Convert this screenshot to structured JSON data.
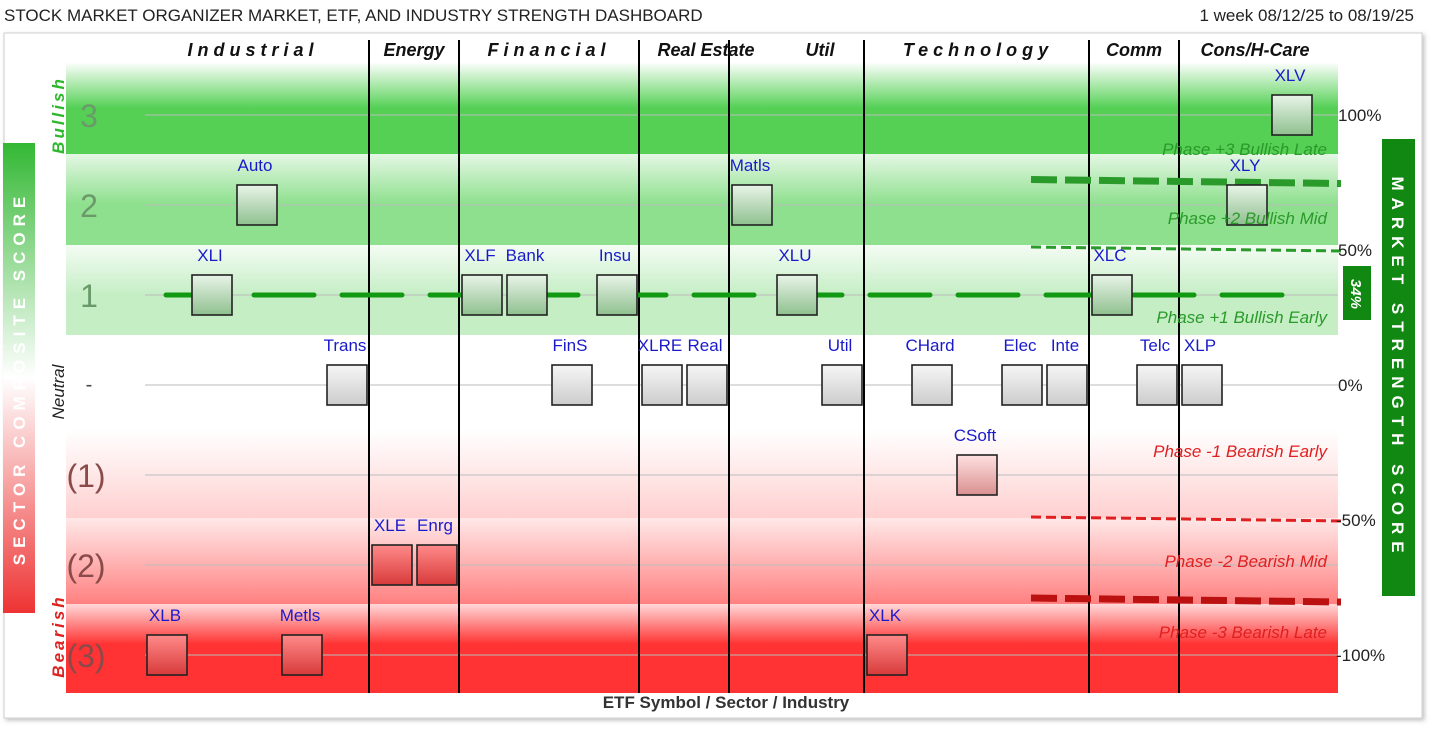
{
  "header": {
    "title": "STOCK MARKET ORGANIZER MARKET, ETF, AND INDUSTRY STRENGTH DASHBOARD",
    "date_range": "1 week 08/12/25 to 08/19/25"
  },
  "left_axis": {
    "title": "SECTOR COMPOSITE SCORE",
    "bullish": "Bullish",
    "neutral": "Neutral",
    "bearish": "Bearish"
  },
  "right_axis": {
    "title": "MARKET STRENGTH SCORE",
    "market_value": "34%",
    "ticks": [
      {
        "label": "100%",
        "value": 100
      },
      {
        "label": "50%",
        "value": 50
      },
      {
        "label": "0%",
        "value": 0
      },
      {
        "label": "-50%",
        "value": -50
      },
      {
        "label": "-100%",
        "value": -100
      }
    ]
  },
  "chart_data": {
    "type": "scatter",
    "title": "STOCK MARKET ORGANIZER MARKET, ETF, AND INDUSTRY STRENGTH DASHBOARD",
    "xlabel": "ETF Symbol / Sector / Industry",
    "ylabel": "SECTOR COMPOSITE SCORE",
    "y2label": "MARKET STRENGTH SCORE",
    "ylim": [
      -3,
      3
    ],
    "y_levels": [
      {
        "label": "3",
        "value": 3
      },
      {
        "label": "2",
        "value": 2
      },
      {
        "label": "1",
        "value": 1
      },
      {
        "label": "-",
        "value": 0
      },
      {
        "label": "(1)",
        "value": -1
      },
      {
        "label": "(2)",
        "value": -2
      },
      {
        "label": "(3)",
        "value": -3
      }
    ],
    "sectors": [
      {
        "name": "Industrial",
        "symbols": [
          "XLB",
          "Auto",
          "XLI",
          "Metls",
          "Trans"
        ]
      },
      {
        "name": "Energy",
        "symbols": [
          "XLE",
          "Enrg"
        ]
      },
      {
        "name": "Financial",
        "symbols": [
          "XLF",
          "Bank",
          "FinS",
          "Insu"
        ]
      },
      {
        "name": "Real Estate",
        "symbols": [
          "XLRE",
          "Real"
        ]
      },
      {
        "name": "Util",
        "symbols": [
          "Matls",
          "XLU",
          "Util"
        ]
      },
      {
        "name": "Technology",
        "symbols": [
          "XLK",
          "CHard",
          "CSoft",
          "Elec",
          "Inte"
        ]
      },
      {
        "name": "Comm",
        "symbols": [
          "XLC",
          "Telc"
        ]
      },
      {
        "name": "Cons/H-Care",
        "symbols": [
          "XLP",
          "XLY",
          "XLV"
        ]
      }
    ],
    "points": [
      {
        "label": "XLB",
        "score": -3
      },
      {
        "label": "Auto",
        "score": 2
      },
      {
        "label": "XLI",
        "score": 1
      },
      {
        "label": "Metls",
        "score": -3
      },
      {
        "label": "Trans",
        "score": 0
      },
      {
        "label": "XLE",
        "score": -2
      },
      {
        "label": "Enrg",
        "score": -2
      },
      {
        "label": "XLF",
        "score": 1
      },
      {
        "label": "Bank",
        "score": 1
      },
      {
        "label": "FinS",
        "score": 0
      },
      {
        "label": "Insu",
        "score": 1
      },
      {
        "label": "XLRE",
        "score": 0
      },
      {
        "label": "Real",
        "score": 0
      },
      {
        "label": "Matls",
        "score": 2
      },
      {
        "label": "XLU",
        "score": 1
      },
      {
        "label": "Util",
        "score": 0
      },
      {
        "label": "XLK",
        "score": -3
      },
      {
        "label": "CHard",
        "score": 0
      },
      {
        "label": "CSoft",
        "score": -1
      },
      {
        "label": "Elec",
        "score": 0
      },
      {
        "label": "Inte",
        "score": 0
      },
      {
        "label": "XLC",
        "score": 1
      },
      {
        "label": "Telc",
        "score": 0
      },
      {
        "label": "XLP",
        "score": 0
      },
      {
        "label": "XLY",
        "score": 2
      },
      {
        "label": "XLV",
        "score": 3
      }
    ],
    "market_strength": 34,
    "phases": [
      {
        "label": "Phase +3 Bullish Late",
        "threshold": 75
      },
      {
        "label": "Phase +2 Bullish Mid",
        "threshold": 50
      },
      {
        "label": "Phase +1 Bullish Early",
        "threshold": 0
      },
      {
        "label": "Phase -1 Bearish Early",
        "threshold": -50
      },
      {
        "label": "Phase -2 Bearish Mid",
        "threshold": -80
      },
      {
        "label": "Phase -3 Bearish Late",
        "threshold": -100
      }
    ]
  },
  "colors": {
    "bullish_green": "#55d055",
    "bearish_red": "#ff3333",
    "phase_green": "#2a9a2a",
    "phase_red": "#e02020",
    "symbol_blue": "#1a1acc",
    "market_bar": "#118811",
    "score_line": "#119911"
  }
}
